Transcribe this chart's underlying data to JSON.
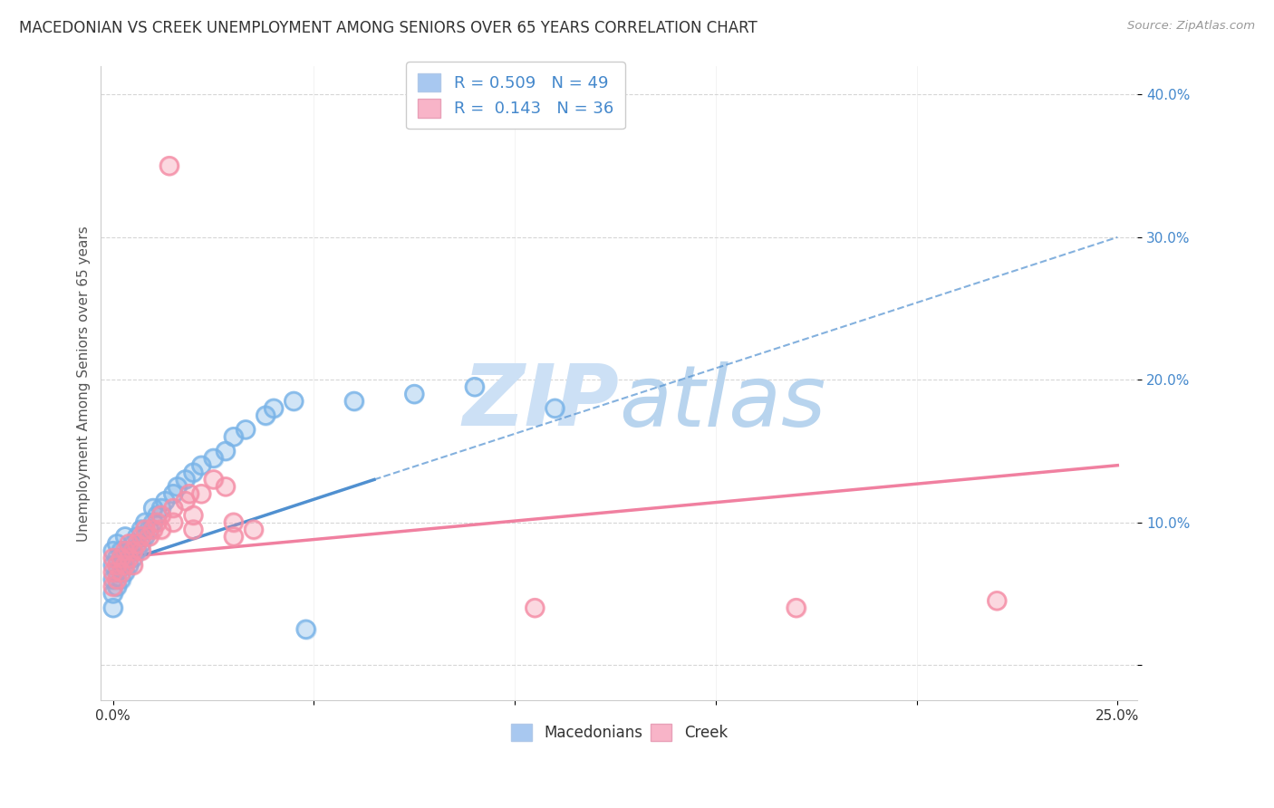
{
  "title": "MACEDONIAN VS CREEK UNEMPLOYMENT AMONG SENIORS OVER 65 YEARS CORRELATION CHART",
  "source": "Source: ZipAtlas.com",
  "ylabel": "Unemployment Among Seniors over 65 years",
  "xlim": [
    -0.003,
    0.255
  ],
  "ylim": [
    -0.025,
    0.42
  ],
  "xticks": [
    0.0,
    0.05,
    0.1,
    0.15,
    0.2,
    0.25
  ],
  "xtick_labels": [
    "0.0%",
    "",
    "",
    "",
    "",
    "25.0%"
  ],
  "yticks": [
    0.0,
    0.1,
    0.2,
    0.3,
    0.4
  ],
  "ytick_labels": [
    "",
    "10.0%",
    "20.0%",
    "30.0%",
    "40.0%"
  ],
  "mac_color": "#7ab4e8",
  "creek_color": "#f590a8",
  "mac_line_color": "#5090d0",
  "creek_line_color": "#f080a0",
  "background_color": "#ffffff",
  "watermark_color": "#cce0f5",
  "title_fontsize": 12,
  "label_fontsize": 11,
  "tick_fontsize": 11,
  "macedonian_x": [
    0.0,
    0.0,
    0.0,
    0.0,
    0.0,
    0.001,
    0.001,
    0.001,
    0.001,
    0.002,
    0.002,
    0.002,
    0.003,
    0.003,
    0.003,
    0.004,
    0.004,
    0.005,
    0.005,
    0.006,
    0.006,
    0.007,
    0.007,
    0.008,
    0.008,
    0.009,
    0.01,
    0.01,
    0.011,
    0.012,
    0.013,
    0.015,
    0.016,
    0.018,
    0.02,
    0.022,
    0.025,
    0.028,
    0.03,
    0.033,
    0.038,
    0.04,
    0.045,
    0.048,
    0.06,
    0.075,
    0.09,
    0.11
  ],
  "macedonian_y": [
    0.06,
    0.07,
    0.08,
    0.05,
    0.04,
    0.065,
    0.075,
    0.085,
    0.055,
    0.07,
    0.08,
    0.06,
    0.075,
    0.065,
    0.09,
    0.08,
    0.07,
    0.085,
    0.075,
    0.09,
    0.08,
    0.095,
    0.085,
    0.1,
    0.09,
    0.095,
    0.1,
    0.11,
    0.105,
    0.11,
    0.115,
    0.12,
    0.125,
    0.13,
    0.135,
    0.14,
    0.145,
    0.15,
    0.16,
    0.165,
    0.175,
    0.18,
    0.185,
    0.025,
    0.185,
    0.19,
    0.195,
    0.18
  ],
  "creek_x": [
    0.0,
    0.0,
    0.0,
    0.001,
    0.001,
    0.002,
    0.002,
    0.003,
    0.003,
    0.004,
    0.004,
    0.005,
    0.005,
    0.006,
    0.007,
    0.007,
    0.008,
    0.009,
    0.01,
    0.011,
    0.012,
    0.012,
    0.014,
    0.015,
    0.015,
    0.018,
    0.019,
    0.02,
    0.02,
    0.022,
    0.025,
    0.028,
    0.03,
    0.03,
    0.035,
    0.105,
    0.17,
    0.22
  ],
  "creek_y": [
    0.065,
    0.075,
    0.055,
    0.07,
    0.06,
    0.075,
    0.065,
    0.08,
    0.07,
    0.085,
    0.075,
    0.08,
    0.07,
    0.085,
    0.09,
    0.08,
    0.095,
    0.09,
    0.095,
    0.1,
    0.105,
    0.095,
    0.35,
    0.11,
    0.1,
    0.115,
    0.12,
    0.095,
    0.105,
    0.12,
    0.13,
    0.125,
    0.1,
    0.09,
    0.095,
    0.04,
    0.04,
    0.045
  ]
}
